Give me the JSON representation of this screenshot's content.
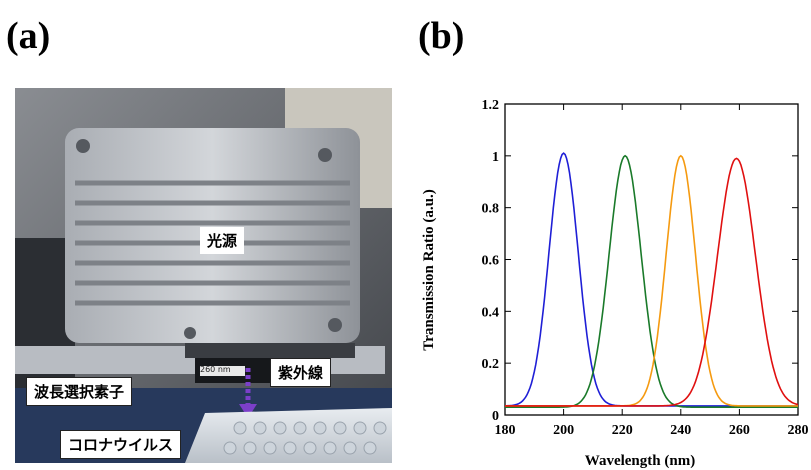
{
  "panels": {
    "a_label": "(a)",
    "b_label": "(b)"
  },
  "photo": {
    "callouts": {
      "light_source": "光源",
      "wavelength_filter": "波長選択素子",
      "uv": "紫外線",
      "coronavirus": "コロナウイルス"
    },
    "filter_marking": "260 nm"
  },
  "chart_data": {
    "type": "line",
    "xlabel": "Wavelength (nm)",
    "ylabel": "Transmission Ratio (a.u.)",
    "xlim": [
      180,
      280
    ],
    "ylim": [
      0,
      1.2
    ],
    "xticks": [
      "180",
      "200",
      "220",
      "240",
      "260",
      "280"
    ],
    "yticks": [
      "0",
      "0.2",
      "0.4",
      "0.6",
      "0.8",
      "1",
      "1.2"
    ],
    "grid": false,
    "series": [
      {
        "color": "#1f1fd6",
        "center": 200,
        "peak": 1.01,
        "width_nm": 5.0,
        "baseline": 0.035
      },
      {
        "color": "#1a7a2a",
        "center": 221,
        "peak": 1.0,
        "width_nm": 5.5,
        "baseline": 0.03
      },
      {
        "color": "#f59a10",
        "center": 240,
        "peak": 1.0,
        "width_nm": 5.0,
        "baseline": 0.035
      },
      {
        "color": "#e01010",
        "center": 259,
        "peak": 0.99,
        "width_nm": 6.5,
        "baseline": 0.035
      }
    ]
  }
}
